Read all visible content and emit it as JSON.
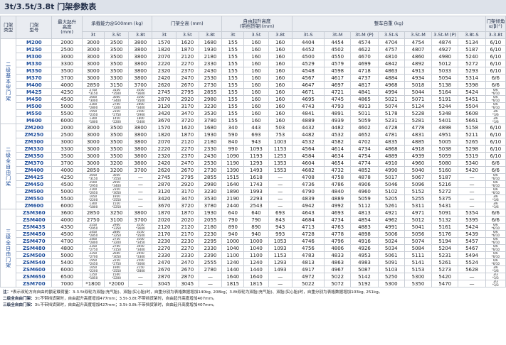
{
  "title": "3t/3.5t/3.8t 门架参数表",
  "header": {
    "type": "门架\n类型",
    "model": "门架\n型号",
    "height": "最大起升\n高度\n(mm)",
    "capacity": "承载能力@500mm (kg)",
    "capacity_cols": [
      "3t",
      "3.5t",
      "3.8t"
    ],
    "overall": "门架全高 (mm)",
    "overall_cols": [
      "3t",
      "3.5t",
      "3.8t"
    ],
    "freelift": "自由起升高度\n(带挡货架)(mm)",
    "freelift_cols": [
      "3t",
      "3.5t",
      "3.8t"
    ],
    "weight": "整车自重 (kg)",
    "weight_cols": [
      "3t-S",
      "3t-M",
      "3t-M (P)",
      "3.5t-S",
      "3.5t-M",
      "3.5t-M (P)",
      "3.8t-S"
    ],
    "tilt": "门架倾角\nα/β(°)",
    "tilt_cols": [
      "3-3.8t"
    ]
  },
  "groups": [
    {
      "type": "二级基本型门架",
      "rows": [
        [
          "M200",
          "2000",
          "3000",
          "3500",
          "3800",
          "1570",
          "1620",
          "1680",
          "155",
          "160",
          "160",
          "4404",
          "4454",
          "4574",
          "4704",
          "4754",
          "4874",
          "5134",
          "6/10"
        ],
        [
          "M250",
          "2500",
          "3000",
          "3500",
          "3800",
          "1820",
          "1870",
          "1930",
          "155",
          "160",
          "160",
          "4452",
          "4502",
          "4622",
          "4757",
          "4807",
          "4927",
          "5187",
          "6/10"
        ],
        [
          "M300",
          "3000",
          "3000",
          "3500",
          "3800",
          "2070",
          "2120",
          "2180",
          "155",
          "160",
          "160",
          "4500",
          "4550",
          "4670",
          "4810",
          "4860",
          "4980",
          "5240",
          "6/10"
        ],
        [
          "M330",
          "3300",
          "3000",
          "3500",
          "3800",
          "2220",
          "2270",
          "2330",
          "155",
          "160",
          "160",
          "4529",
          "4579",
          "4699",
          "4842",
          "4892",
          "5012",
          "5272",
          "6/10"
        ],
        [
          "M350",
          "3500",
          "3000",
          "3500",
          "3800",
          "2320",
          "2370",
          "2430",
          "155",
          "160",
          "160",
          "4548",
          "4598",
          "4718",
          "4863",
          "4913",
          "5033",
          "5293",
          "6/10"
        ],
        [
          "M370",
          "3700",
          "3000",
          "3300",
          "3800",
          "2420",
          "2470",
          "2530",
          "155",
          "160",
          "160",
          "4567",
          "4617",
          "4737",
          "4884",
          "4934",
          "5054",
          "5314",
          "6/6"
        ],
        [
          "M400",
          "4000",
          "2850",
          "3150",
          "3700",
          "2620",
          "2670",
          "2730",
          "155",
          "160",
          "160",
          "4647",
          "4697",
          "4817",
          "4968",
          "5018",
          "5138",
          "5398",
          "6/6"
        ],
        [
          "M425",
          "4250",
          "2750\n*3150",
          "3150\n*3500",
          "3350\n*3600",
          "2745",
          "2795",
          "2855",
          "155",
          "160",
          "160",
          "4671",
          "4721",
          "4841",
          "4994",
          "5044",
          "5164",
          "5424",
          "6/6\n*6/10"
        ],
        [
          "M450",
          "4500",
          "2600\n*3000",
          "3000\n*3400",
          "3200\n*3500",
          "2870",
          "2920",
          "2980",
          "155",
          "160",
          "160",
          "4695",
          "4745",
          "4865",
          "5021",
          "5071",
          "5191",
          "5451",
          "6/6\n*6/10"
        ],
        [
          "M500",
          "5000",
          "2300\n*2800",
          "2700\n*3200",
          "2800\n*3400",
          "3120",
          "3170",
          "3230",
          "155",
          "160",
          "160",
          "4743",
          "4793",
          "4913",
          "5074",
          "5124",
          "5244",
          "5504",
          "6/6\n*6/10"
        ],
        [
          "M550",
          "5500",
          "1950\n*2350",
          "2350\n*2750",
          "2500\n*2900",
          "3420",
          "3470",
          "3530",
          "155",
          "160",
          "160",
          "4841",
          "4891",
          "5011",
          "5178",
          "5228",
          "5348",
          "5608",
          "3/6\n*3/6"
        ],
        [
          "M600",
          "6000",
          "1300\n*1800",
          "1450\n*2200",
          "1800\n*2400",
          "3670",
          "3720",
          "3780",
          "155",
          "160",
          "160",
          "4889",
          "4939",
          "5059",
          "5231",
          "5281",
          "5401",
          "5661",
          "3/6\n*3/6"
        ]
      ]
    },
    {
      "type": "二级全自由门架",
      "rows": [
        [
          "ZM200",
          "2000",
          "3000",
          "3500",
          "3800",
          "1570",
          "1620",
          "1680",
          "340",
          "443",
          "503",
          "4432",
          "4482",
          "4602",
          "4728",
          "4778",
          "4898",
          "5158",
          "6/10"
        ],
        [
          "ZM250",
          "2500",
          "3000",
          "3500",
          "3800",
          "1820",
          "1870",
          "1930",
          "590",
          "693",
          "753",
          "4482",
          "4532",
          "4652",
          "4781",
          "4831",
          "4951",
          "5211",
          "6/10"
        ],
        [
          "ZM300",
          "3000",
          "3000",
          "3500",
          "3800",
          "2070",
          "2120",
          "2180",
          "840",
          "943",
          "1003",
          "4532",
          "4582",
          "4702",
          "4835",
          "4885",
          "5005",
          "5265",
          "6/10"
        ],
        [
          "ZM330",
          "3300",
          "3000",
          "3500",
          "3800",
          "2220",
          "2270",
          "2330",
          "990",
          "1093",
          "1153",
          "4564",
          "4614",
          "4734",
          "4868",
          "4918",
          "5038",
          "5298",
          "6/10"
        ],
        [
          "ZM350",
          "3500",
          "3000",
          "3500",
          "3800",
          "2320",
          "2370",
          "2430",
          "1090",
          "1193",
          "1253",
          "4584",
          "4634",
          "4754",
          "4889",
          "4939",
          "5059",
          "5319",
          "6/10"
        ],
        [
          "ZM370",
          "3700",
          "3000",
          "3200",
          "3800",
          "2420",
          "2470",
          "2530",
          "1190",
          "1293",
          "1353",
          "4604",
          "4654",
          "4774",
          "4910",
          "4960",
          "5080",
          "5340",
          "6/6"
        ],
        [
          "ZM400",
          "4000",
          "2850",
          "3200",
          "3700",
          "2620",
          "2670",
          "2730",
          "1390",
          "1493",
          "1553",
          "4682",
          "4732",
          "4852",
          "4990",
          "5040",
          "5160",
          "5420",
          "6/6"
        ],
        [
          "ZM425",
          "4250",
          "2650\n*3150",
          "3050\n*3550",
          "—",
          "2745",
          "2795",
          "2855",
          "1515",
          "1618",
          "—",
          "4708",
          "4758",
          "4878",
          "5017",
          "5067",
          "5187",
          "—",
          "6/6\n*6/10"
        ],
        [
          "ZM450",
          "4500",
          "2500\n*2950",
          "2950\n*3400",
          "—",
          "2870",
          "2920",
          "2980",
          "1640",
          "1743",
          "—",
          "4736",
          "4786",
          "4906",
          "5046",
          "5096",
          "5216",
          "—",
          "6/6\n*6/10"
        ],
        [
          "ZM500",
          "5000",
          "2100\n*2650",
          "2350\n*3050",
          "—",
          "3120",
          "3170",
          "3230",
          "1890",
          "1993",
          "—",
          "4790",
          "4840",
          "4960",
          "5102",
          "5152",
          "5272",
          "—",
          "6/6\n*6/10"
        ],
        [
          "ZM550",
          "5500",
          "1650\n*2200",
          "1950\n*2550",
          "—",
          "3420",
          "3470",
          "3530",
          "2190",
          "2293",
          "—",
          "4839",
          "4889",
          "5059",
          "5205",
          "5255",
          "5375",
          "—",
          "3/6\n*3/6"
        ],
        [
          "ZM600",
          "6000",
          "1300\n*1800",
          "1550\n*2250",
          "—",
          "3670",
          "3720",
          "3780",
          "2440",
          "2543",
          "—",
          "4942",
          "4992",
          "5112",
          "5261",
          "5311",
          "5431",
          "—",
          "3/6\n*3/6"
        ]
      ]
    },
    {
      "type": "三级全自由门架",
      "rows": [
        [
          "ZSM360",
          "3600",
          "2850",
          "3250",
          "3800",
          "1870",
          "1870",
          "1930",
          "640",
          "640",
          "693",
          "4643",
          "4693",
          "4813",
          "4921",
          "4971",
          "5091",
          "5354",
          "6/6"
        ],
        [
          "ZSM400",
          "4000",
          "2750",
          "3100",
          "3700",
          "2020",
          "2020",
          "2055",
          "790",
          "790",
          "843",
          "4684",
          "4734",
          "4854",
          "4962",
          "5012",
          "5132",
          "5395",
          "6/6"
        ],
        [
          "ZSM435",
          "4350",
          "2550\n*2950",
          "2900\n*3350",
          "3250\n*3600",
          "2120",
          "2120",
          "2180",
          "890",
          "890",
          "943",
          "4713",
          "4763",
          "4883",
          "4991",
          "5041",
          "5161",
          "5424",
          "6/6\n*6/10"
        ],
        [
          "ZSM450",
          "4500",
          "2450\n*2850",
          "2800\n*3250",
          "3150\n*3500",
          "2170",
          "2170",
          "2230",
          "940",
          "940",
          "993",
          "4728",
          "4778",
          "4898",
          "5006",
          "5056",
          "5176",
          "5439",
          "6/6\n*6/10"
        ],
        [
          "ZSM470",
          "4700",
          "2400\n*2800",
          "2750\n*3200",
          "3100\n*3450",
          "2230",
          "2230",
          "2295",
          "1000",
          "1000",
          "1053",
          "4746",
          "4796",
          "4916",
          "5024",
          "5074",
          "5194",
          "5457",
          "6/6\n*6/10"
        ],
        [
          "ZSM480",
          "4800",
          "2350\n*2750",
          "2700\n*3150",
          "3050\n*3400",
          "2270",
          "2270",
          "2330",
          "1040",
          "1040",
          "1093",
          "4756",
          "4806",
          "4926",
          "5034",
          "5084",
          "5204",
          "5467",
          "6/6\n*6/10"
        ],
        [
          "ZSM500",
          "5000",
          "2250\n*2700",
          "2600\n*3050",
          "2950\n*3300",
          "2330",
          "2330",
          "2390",
          "1100",
          "1100",
          "1153",
          "4783",
          "4833",
          "4953",
          "5061",
          "5111",
          "5231",
          "5494",
          "6/6\n*6/10"
        ],
        [
          "ZSM540",
          "5400",
          "1950\n*2450",
          "2250\n*2750",
          "2500\n*3000",
          "2470",
          "2470",
          "2555",
          "1240",
          "1240",
          "1293",
          "4813",
          "4863",
          "4983",
          "5091",
          "5141",
          "5261",
          "5524",
          "6/6\n*6/10"
        ],
        [
          "ZSM600",
          "6000",
          "1650\n*2200",
          "1900\n*2550",
          "2150\n*2800",
          "2670",
          "2670",
          "2780",
          "1440",
          "1440",
          "1493",
          "4917",
          "4967",
          "5087",
          "5103",
          "5153",
          "5273",
          "5628",
          "3/6\n*3/6"
        ],
        [
          "ZSM650",
          "6500",
          "1250\n*1850",
          "1500\n*2200",
          "—",
          "2870",
          "2870",
          "—",
          "1640",
          "1640",
          "—",
          "4972",
          "5022",
          "5142",
          "5250",
          "5300",
          "5420",
          "—",
          "3/3\n*3/3"
        ],
        [
          "ZSM700",
          "7000",
          "*1800",
          "*2000",
          "—",
          "3045",
          "3045",
          "—",
          "1815",
          "1815",
          "—",
          "5022",
          "5072",
          "5192",
          "5300",
          "5350",
          "5470",
          "—",
          "3/3\n*3/3"
        ]
      ]
    }
  ],
  "notes": [
    {
      "label": "注：",
      "text": "*表示双轮方向自由的额定载荷量：3-3.5t双轮为双胎(充气胎)、双胎(实心胎)时，自重分别为表格数据增加140kg, 208kg；3.8t双轮为双胎(充气胎)、双胎(实心胎)时，自重分别为表格数据增加103kg, 251kg。"
    },
    {
      "label": "二级全自由门架：",
      "text": "3t:不带挡货架时，自由起升高度增加477mm；3.5t-3.8t:不带挡货架时，自由起升高度增加407mm。"
    },
    {
      "label": "三级全自由门架：",
      "text": "3t:不带挡货架时，自由起升高度增加427mm；3.5t-3.8t:不带挡货架时，自由起升高度增加407mm。"
    }
  ]
}
